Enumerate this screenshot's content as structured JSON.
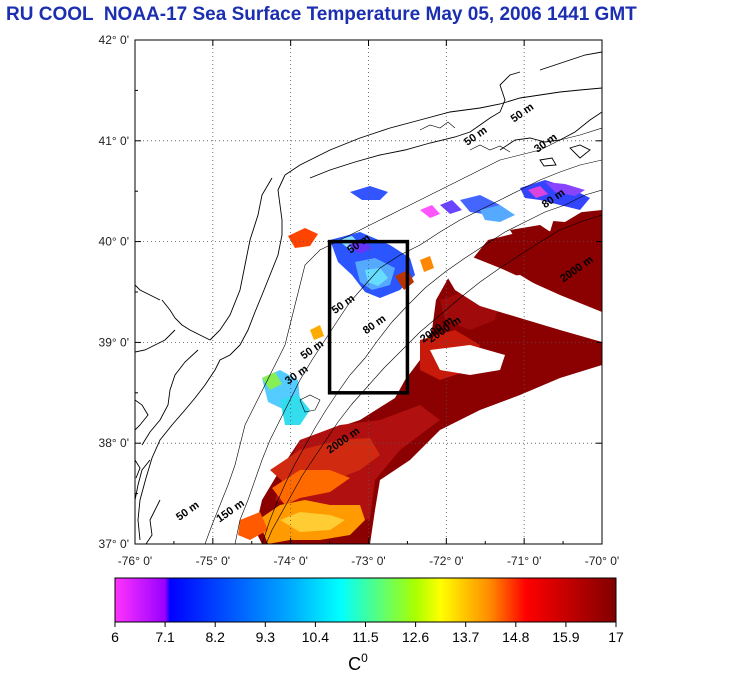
{
  "title": "RU COOL  NOAA-17 Sea Surface Temperature May 05, 2006 1441 GMT",
  "map": {
    "lat_labels": [
      "42° 0'",
      "41° 0'",
      "40° 0'",
      "39° 0'",
      "38° 0'",
      "37° 0'"
    ],
    "lon_labels": [
      "-76° 0'",
      "-75° 0'",
      "-74° 0'",
      "-73° 0'",
      "-72° 0'",
      "-71° 0'",
      "-70° 0'"
    ],
    "lat_range": [
      37,
      42
    ],
    "lon_range": [
      -76,
      -70
    ],
    "grid": "dotted",
    "study_box": {
      "lon": [
        -73.5,
        -72.5
      ],
      "lat": [
        38.5,
        40.0
      ]
    },
    "contour_labels": [
      {
        "text": "50 m",
        "lon": -71.0,
        "lat": 41.25
      },
      {
        "text": "50 m",
        "lon": -71.6,
        "lat": 41.02
      },
      {
        "text": "30 m",
        "lon": -70.7,
        "lat": 40.95
      },
      {
        "text": "80 m",
        "lon": -70.6,
        "lat": 40.4
      },
      {
        "text": "2000 m",
        "lon": -70.3,
        "lat": 39.7
      },
      {
        "text": "2000 m",
        "lon": -72.1,
        "lat": 39.1
      },
      {
        "text": "50 m",
        "lon": -73.1,
        "lat": 39.95
      },
      {
        "text": "50 m",
        "lon": -73.3,
        "lat": 39.35
      },
      {
        "text": "80 m",
        "lon": -72.9,
        "lat": 39.15
      },
      {
        "text": "50 m",
        "lon": -73.7,
        "lat": 38.9
      },
      {
        "text": "30 m",
        "lon": -73.9,
        "lat": 38.65
      },
      {
        "text": "2000 m",
        "lon": -73.3,
        "lat": 38.0
      },
      {
        "text": "50 m",
        "lon": -75.3,
        "lat": 37.3
      },
      {
        "text": "150 m",
        "lon": -74.75,
        "lat": 37.3
      },
      {
        "text": "2000 m",
        "lon": -72.0,
        "lat": 39.1
      }
    ]
  },
  "colorbar": {
    "tick_labels": [
      "6",
      "7.1",
      "8.2",
      "9.3",
      "10.4",
      "11.5",
      "12.6",
      "13.7",
      "14.8",
      "15.9",
      "17"
    ],
    "min": 6,
    "max": 17,
    "unit": "C",
    "unit_superscript": "0",
    "colors": [
      "#ff33ff",
      "#0000ff",
      "#00ffff",
      "#ffff00",
      "#ff0000",
      "#800000"
    ]
  }
}
